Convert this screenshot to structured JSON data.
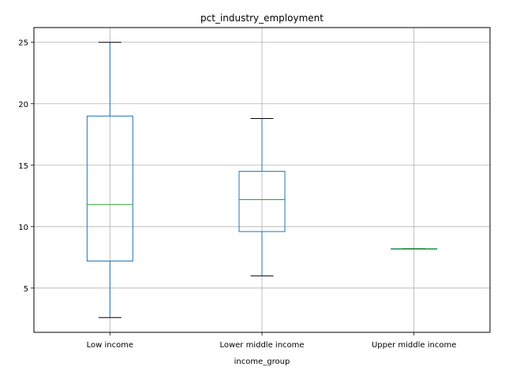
{
  "chart_data": {
    "type": "box",
    "title": "pct_industry_employment",
    "xlabel": "income_group",
    "ylabel": "",
    "ylim": [
      1.4,
      26.2
    ],
    "yticks": [
      5,
      10,
      15,
      20,
      25
    ],
    "grid": true,
    "categories": [
      "Low income",
      "Lower middle income",
      "Upper middle income"
    ],
    "boxes": [
      {
        "category": "Low income",
        "whisker_low": 2.6,
        "q1": 7.2,
        "median": 11.8,
        "q3": 19.0,
        "whisker_high": 25.0
      },
      {
        "category": "Lower middle income",
        "whisker_low": 6.0,
        "q1": 9.6,
        "median": 12.2,
        "q3": 14.5,
        "whisker_high": 18.8
      },
      {
        "category": "Upper middle income",
        "whisker_low": 8.2,
        "q1": 8.2,
        "median": 8.2,
        "q3": 8.2,
        "whisker_high": 8.2
      }
    ],
    "colors": {
      "box": "#1f77b4",
      "median": "#2ca02c",
      "cap": "#000000",
      "grid": "#b0b0b0"
    }
  }
}
